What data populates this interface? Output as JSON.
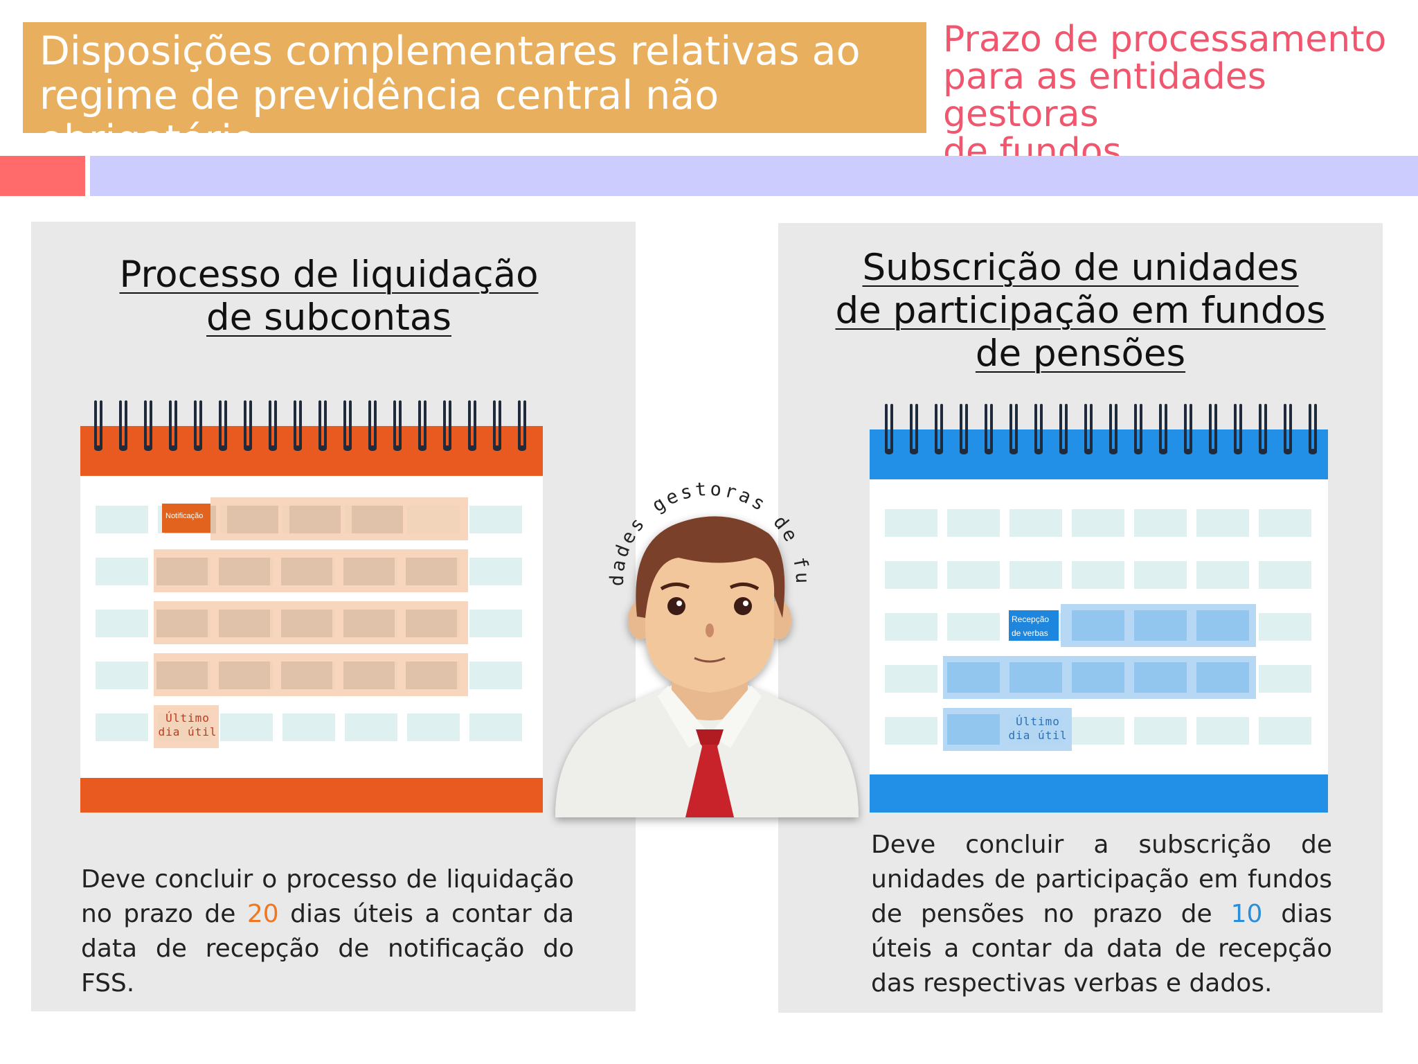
{
  "header": {
    "title": "Disposições complementares relativas ao regime de previdência central não obrigatório",
    "title_line1": "Disposições complementares relativas ao",
    "title_line2": "regime de previdência central não obrigatório",
    "subtitle_line1": "Prazo de processamento",
    "subtitle_line2": "para as entidades gestoras",
    "subtitle_line3": "de fundos"
  },
  "left_panel": {
    "title_line1": "Processo de liquidação",
    "title_line2": "de subcontas",
    "calendar_label_start": "Notificação",
    "calendar_label_end_1": "Último",
    "calendar_label_end_2": "dia útil",
    "desc_part1": "Deve concluir o processo de liquidação no prazo de ",
    "desc_number": "20",
    "desc_part2": " dias úteis a contar da data de recepção de notificação do FSS."
  },
  "right_panel": {
    "title_line1": "Subscrição de unidades",
    "title_line2": "de participação em fundos",
    "title_line3": "de pensões",
    "calendar_label_start_1": "Recepção",
    "calendar_label_start_2": "de verbas",
    "calendar_label_end_1": "Último",
    "calendar_label_end_2": "dia útil",
    "desc_part1": "Deve concluir a subscrição de unidades de participação em fundos de pensões no prazo de ",
    "desc_number": "10",
    "desc_part2": " dias úteis a contar da data de recepção das respectivas verbas e dados."
  },
  "center": {
    "arc_text": "Entidades gestoras de fundos",
    "icon": "person-avatar-icon"
  },
  "colors": {
    "title_bg": "#e8b05e",
    "subtitle": "#f0566d",
    "orange_calendar": "#e85a20",
    "blue_calendar": "#2290e6",
    "highlight_orange": "#f07722",
    "highlight_blue": "#2b8ed8"
  }
}
